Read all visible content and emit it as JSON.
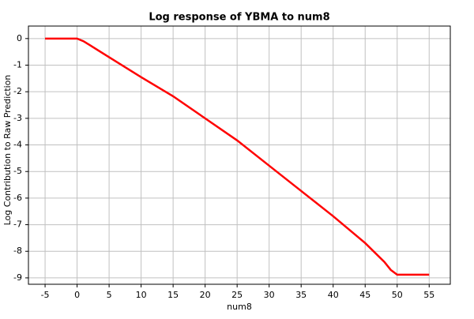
{
  "chart_data": {
    "type": "line",
    "title": "Log response of YBMA to num8",
    "x_label": "num8",
    "y_label": "Log Contribution to Raw Prediction",
    "x": [
      -5,
      0,
      1,
      2,
      5,
      10,
      15,
      20,
      25,
      30,
      35,
      40,
      45,
      48,
      49,
      50,
      55
    ],
    "series": [
      {
        "color": "#ff0000",
        "values": [
          0,
          0,
          -0.1,
          -0.25,
          -0.7,
          -1.45,
          -2.17,
          -3.0,
          -3.83,
          -4.78,
          -5.73,
          -6.68,
          -7.69,
          -8.4,
          -8.7,
          -8.88,
          -8.88
        ]
      }
    ],
    "xlim": [
      -7.6,
      58.3
    ],
    "ylim": [
      -9.24,
      0.47
    ],
    "xticks": [
      -5,
      0,
      5,
      10,
      15,
      20,
      25,
      30,
      35,
      40,
      45,
      50,
      55
    ],
    "yticks": [
      0,
      -1,
      -2,
      -3,
      -4,
      -5,
      -6,
      -7,
      -8,
      -9
    ],
    "grid": true
  }
}
